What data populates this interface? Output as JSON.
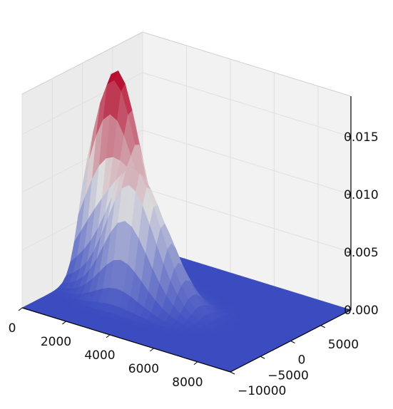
{
  "chart_data": {
    "type": "surface",
    "title": "",
    "xlabel": "",
    "ylabel": "",
    "zlabel": "",
    "colormap": "coolwarm",
    "grid": true,
    "xlim": [
      0,
      9500
    ],
    "ylim": [
      -10000,
      10000
    ],
    "zlim": [
      0,
      0.0185
    ],
    "x_ticks": [
      "0",
      "2000",
      "4000",
      "6000",
      "8000"
    ],
    "y_ticks": [
      "−10000",
      "−5000",
      "0",
      "5000"
    ],
    "z_ticks": [
      "0.000",
      "0.005",
      "0.010",
      "0.015"
    ],
    "peaks": [
      {
        "x": 1200,
        "y": 1200,
        "z": 0.0182,
        "x_spread": 1100,
        "y_spread": 1700
      },
      {
        "x": 2700,
        "y": -2300,
        "z": 0.0082,
        "x_spread": 900,
        "y_spread": 1300
      },
      {
        "x": 3900,
        "y": -1200,
        "z": 0.0055,
        "x_spread": 1000,
        "y_spread": 1600
      }
    ],
    "baseline_z": 0.0,
    "colors": {
      "low": "#3b4cc0",
      "mid": "#dddddd",
      "high": "#b40426",
      "pane": "#f2f2f2",
      "grid": "#e0e0e0"
    }
  }
}
